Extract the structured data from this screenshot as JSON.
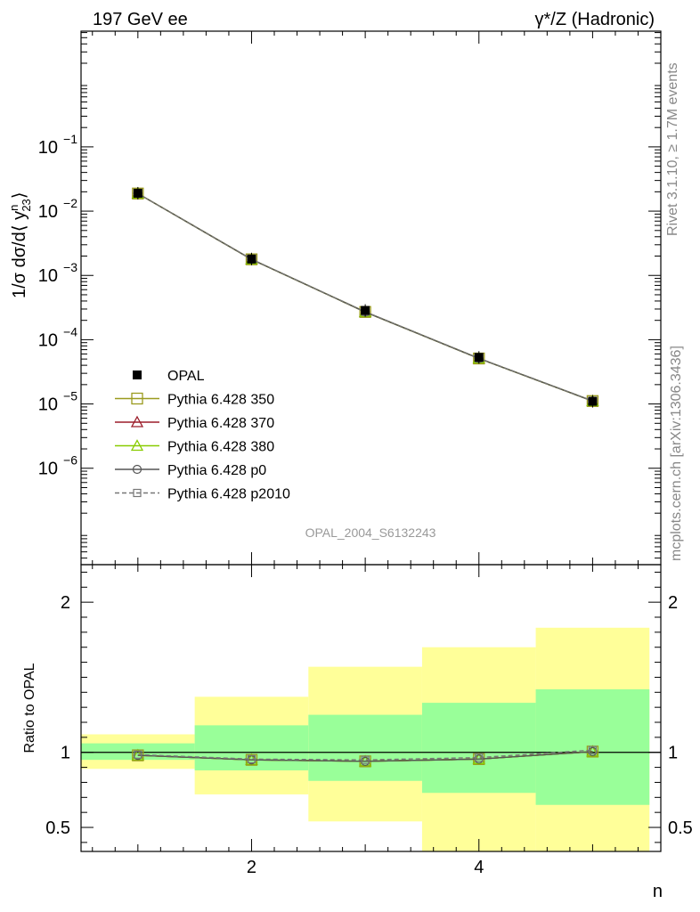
{
  "header": {
    "left": "197 GeV ee",
    "right": "γ*/Z (Hadronic)"
  },
  "side_text": {
    "upper": "Rivet 3.1.10, ≥ 1.7M events",
    "lower": "mcplots.cern.ch [arXiv:1306.3436]"
  },
  "watermark": "OPAL_2004_S6132243",
  "chart_data": [
    {
      "type": "line",
      "panel": "main",
      "yscale": "log",
      "ylabel": "1/σ dσ/d⟨ y",
      "ylabel_sup": "n",
      "ylabel_sub": "23",
      "ylabel_end": "⟩",
      "xlim": [
        0.5,
        5.6
      ],
      "ylim_exp": [
        -7.5,
        0.8
      ],
      "y_ticks": [
        {
          "exp": -1,
          "label": "10",
          "sup": "−1"
        },
        {
          "exp": -2,
          "label": "10",
          "sup": "−2"
        },
        {
          "exp": -3,
          "label": "10",
          "sup": "−3"
        },
        {
          "exp": -4,
          "label": "10",
          "sup": "−4"
        },
        {
          "exp": -5,
          "label": "10",
          "sup": "−5"
        },
        {
          "exp": -6,
          "label": "10",
          "sup": "−6"
        }
      ],
      "x": [
        1,
        2,
        3,
        4,
        5
      ],
      "data": {
        "name": "OPAL",
        "values": [
          0.019,
          0.0018,
          0.000285,
          5.3e-05,
          1.1e-05
        ]
      },
      "series": [
        {
          "name": "Pythia 6.428 350",
          "color": "#9a9a1e",
          "marker": "square-open",
          "dash": "",
          "values": [
            0.0188,
            0.00178,
            0.00027,
            5.1e-05,
            1.11e-05
          ]
        },
        {
          "name": "Pythia 6.428 370",
          "color": "#9b1d2a",
          "marker": "triangle-open",
          "dash": "",
          "values": [
            0.0188,
            0.00178,
            0.00027,
            5.1e-05,
            1.11e-05
          ]
        },
        {
          "name": "Pythia 6.428 380",
          "color": "#88cc00",
          "marker": "triangle-open",
          "dash": "",
          "values": [
            0.0188,
            0.00178,
            0.00027,
            5.1e-05,
            1.11e-05
          ]
        },
        {
          "name": "Pythia 6.428 p0",
          "color": "#555555",
          "marker": "circle-open",
          "dash": "",
          "values": [
            0.0188,
            0.00178,
            0.00027,
            5.1e-05,
            1.11e-05
          ]
        },
        {
          "name": "Pythia 6.428 p2010",
          "color": "#777777",
          "marker": "square-open-small",
          "dash": "5,3",
          "values": [
            0.0188,
            0.00179,
            0.000272,
            5.15e-05,
            1.12e-05
          ]
        }
      ],
      "legend_position": "lower-left"
    },
    {
      "type": "line",
      "panel": "ratio",
      "ylabel": "Ratio to OPAL",
      "xlabel": "n",
      "xlim": [
        0.5,
        5.6
      ],
      "ylim": [
        0.34,
        2.25
      ],
      "x_ticks": [
        {
          "v": 2,
          "label": "2"
        },
        {
          "v": 4,
          "label": "4"
        }
      ],
      "y_ticks": [
        {
          "v": 0.5,
          "label": "0.5"
        },
        {
          "v": 1,
          "label": "1"
        },
        {
          "v": 2,
          "label": "2"
        }
      ],
      "bands": [
        {
          "xlo": 0.5,
          "xhi": 1.5,
          "green": [
            0.95,
            1.06
          ],
          "yellow": [
            0.89,
            1.12
          ]
        },
        {
          "xlo": 1.5,
          "xhi": 2.5,
          "green": [
            0.88,
            1.18
          ],
          "yellow": [
            0.72,
            1.37
          ]
        },
        {
          "xlo": 2.5,
          "xhi": 3.5,
          "green": [
            0.81,
            1.25
          ],
          "yellow": [
            0.54,
            1.57
          ]
        },
        {
          "xlo": 3.5,
          "xhi": 4.5,
          "green": [
            0.73,
            1.33
          ],
          "yellow": [
            0.34,
            1.7
          ]
        },
        {
          "xlo": 4.5,
          "xhi": 5.5,
          "green": [
            0.65,
            1.42
          ],
          "yellow": [
            0.34,
            1.83
          ]
        }
      ],
      "colors": {
        "green": "#99ff99",
        "yellow": "#ffff99"
      },
      "x": [
        1,
        2,
        3,
        4,
        5
      ],
      "series": [
        {
          "name": "Pythia 6.428 350",
          "color": "#9a9a1e",
          "values": [
            0.98,
            0.95,
            0.94,
            0.955,
            1.005
          ]
        },
        {
          "name": "Pythia 6.428 370",
          "color": "#9b1d2a",
          "values": [
            0.98,
            0.95,
            0.94,
            0.955,
            1.005
          ]
        },
        {
          "name": "Pythia 6.428 380",
          "color": "#88cc00",
          "values": [
            0.98,
            0.95,
            0.94,
            0.955,
            1.005
          ]
        },
        {
          "name": "Pythia 6.428 p0",
          "color": "#555555",
          "values": [
            0.98,
            0.95,
            0.94,
            0.955,
            1.005
          ]
        },
        {
          "name": "Pythia 6.428 p2010",
          "color": "#777777",
          "values": [
            0.985,
            0.955,
            0.95,
            0.965,
            1.015
          ]
        }
      ]
    }
  ]
}
